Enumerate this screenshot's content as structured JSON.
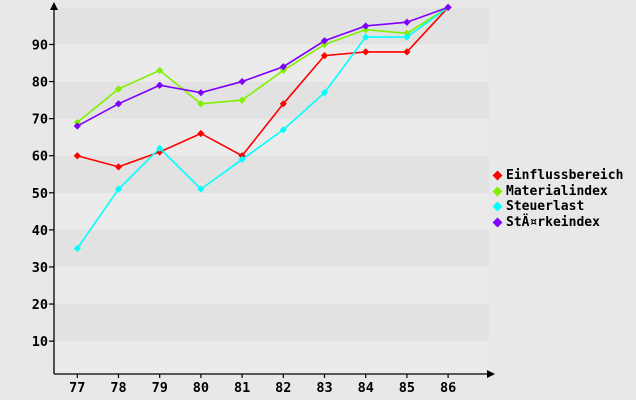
{
  "chart_data": {
    "type": "line",
    "title": "",
    "xlabel": "",
    "ylabel": "",
    "x": [
      77,
      78,
      79,
      80,
      81,
      82,
      83,
      84,
      85,
      86
    ],
    "x_tick_labels": [
      "77",
      "78",
      "79",
      "80",
      "81",
      "82",
      "83",
      "84",
      "85",
      "86"
    ],
    "y_ticks": [
      10,
      20,
      30,
      40,
      50,
      60,
      70,
      80,
      90
    ],
    "y_tick_labels": [
      "10",
      "20",
      "30",
      "40",
      "50",
      "60",
      "70",
      "80",
      "90"
    ],
    "ylim": [
      0,
      100
    ],
    "grid": "horizontal-bands",
    "legend_position": "right",
    "marker": "diamond",
    "series": [
      {
        "name": "Einflussbereich",
        "color": "#ff0000",
        "values": [
          60,
          57,
          61,
          66,
          60,
          74,
          87,
          88,
          88,
          100
        ]
      },
      {
        "name": "Materialindex",
        "color": "#80f000",
        "values": [
          69,
          78,
          83,
          74,
          75,
          83,
          90,
          94,
          93,
          100
        ]
      },
      {
        "name": "Steuerlast",
        "color": "#00ffff",
        "values": [
          35,
          51,
          62,
          51,
          59,
          67,
          77,
          92,
          92,
          100
        ]
      },
      {
        "name": "StÄ¤rkeindex",
        "color": "#7f00ff",
        "values": [
          68,
          74,
          79,
          77,
          80,
          84,
          91,
          95,
          96,
          100
        ]
      }
    ],
    "colors": {
      "axis": "#000000",
      "tick_label": "#000000",
      "band_dark": "#e2e2e2",
      "band_light": "#ebebeb",
      "page_background": "#e8e8e8"
    }
  }
}
